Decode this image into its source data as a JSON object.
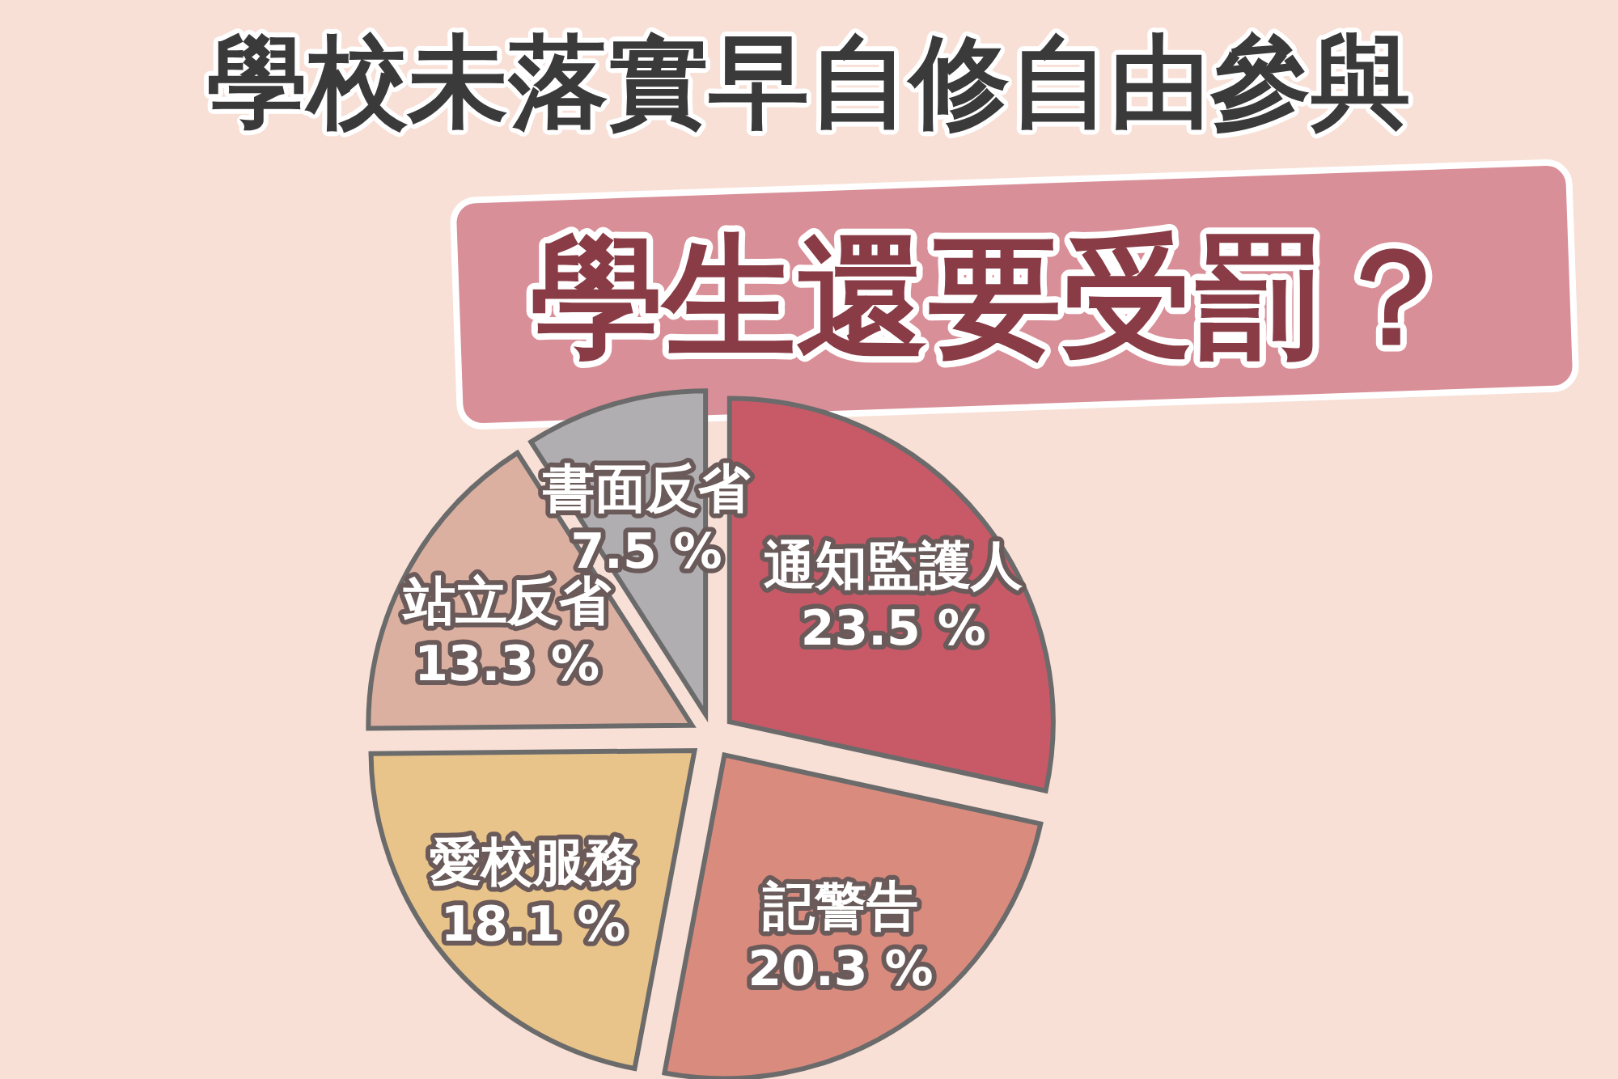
{
  "chart_data": {
    "type": "pie",
    "title": "學校未落實早自修自由參與",
    "subtitle": "學生還要受罰？",
    "categories": [
      "通知監護人",
      "記警告",
      "愛校服務",
      "站立反省",
      "書面反省"
    ],
    "values": [
      23.5,
      20.3,
      18.1,
      13.3,
      7.5
    ],
    "value_labels": [
      "23.5 %",
      "20.3 %",
      "18.1 %",
      "13.3 %",
      "7.5 %"
    ],
    "colors": [
      "#c85a68",
      "#d98b7e",
      "#e9c48a",
      "#dcb0a0",
      "#b0aeb0"
    ]
  }
}
